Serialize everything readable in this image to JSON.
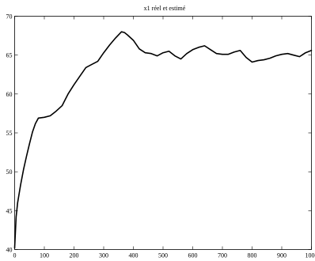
{
  "chart_data": {
    "type": "line",
    "title": "x1 réel et estimé",
    "xlabel": "",
    "ylabel": "",
    "xlim": [
      0,
      1000
    ],
    "ylim": [
      40,
      70
    ],
    "grid": false,
    "x_ticks": [
      "0",
      "100",
      "200",
      "300",
      "400",
      "500",
      "600",
      "700",
      "800",
      "900",
      "1000"
    ],
    "y_ticks": [
      "40",
      "45",
      "50",
      "55",
      "60",
      "65",
      "70"
    ],
    "series": [
      {
        "x": [
          0,
          5,
          10,
          20,
          30,
          40,
          50,
          60,
          70,
          80,
          100,
          120,
          140,
          160,
          180,
          200,
          220,
          240,
          260,
          280,
          300,
          320,
          340,
          360,
          370,
          380,
          400,
          420,
          440,
          460,
          480,
          500,
          520,
          540,
          560,
          580,
          600,
          620,
          640,
          660,
          680,
          700,
          720,
          740,
          760,
          780,
          800,
          820,
          840,
          860,
          880,
          900,
          920,
          940,
          960,
          980,
          1000
        ],
        "y": [
          40.2,
          44.2,
          46.0,
          48.3,
          50.3,
          52.0,
          53.6,
          55.1,
          56.2,
          56.9,
          57.0,
          57.2,
          57.8,
          58.5,
          60.0,
          61.2,
          62.3,
          63.4,
          63.8,
          64.2,
          65.3,
          66.3,
          67.2,
          68.0,
          67.9,
          67.6,
          66.9,
          65.8,
          65.3,
          65.2,
          64.9,
          65.3,
          65.5,
          64.9,
          64.5,
          65.2,
          65.7,
          66.0,
          66.2,
          65.7,
          65.2,
          65.1,
          65.1,
          65.4,
          65.6,
          64.7,
          64.1,
          64.3,
          64.4,
          64.6,
          64.9,
          65.1,
          65.2,
          65.0,
          64.8,
          65.3,
          65.6
        ]
      }
    ]
  }
}
